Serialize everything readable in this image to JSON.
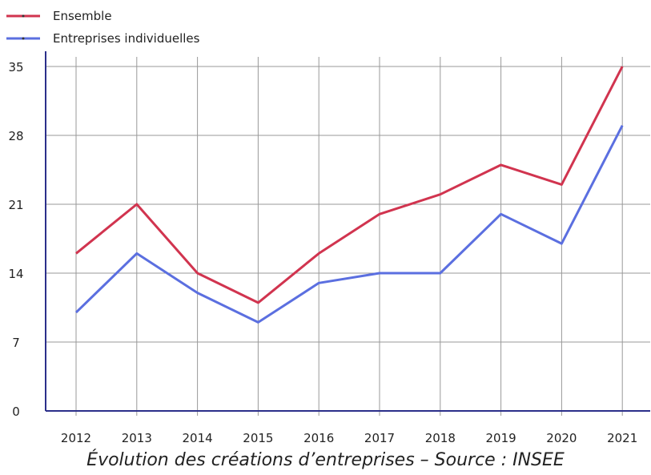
{
  "chart_data": {
    "type": "line",
    "x": [
      "2012",
      "2013",
      "2014",
      "2015",
      "2016",
      "2017",
      "2018",
      "2019",
      "2020",
      "2021"
    ],
    "yticks": [
      "0",
      "7",
      "14",
      "21",
      "28",
      "35"
    ],
    "ylim": [
      0,
      35
    ],
    "grid": true,
    "legend_position": "top-left",
    "series": [
      {
        "name": "Ensemble",
        "color": "#d1344f",
        "values": [
          16,
          21,
          14,
          11,
          16,
          20,
          22,
          25,
          23,
          35
        ]
      },
      {
        "name": "Entreprises individuelles",
        "color": "#5b6fe0",
        "values": [
          10,
          16,
          12,
          9,
          13,
          14,
          14,
          20,
          17,
          29
        ]
      }
    ]
  },
  "caption": "Évolution des créations d’entreprises – Source : INSEE"
}
